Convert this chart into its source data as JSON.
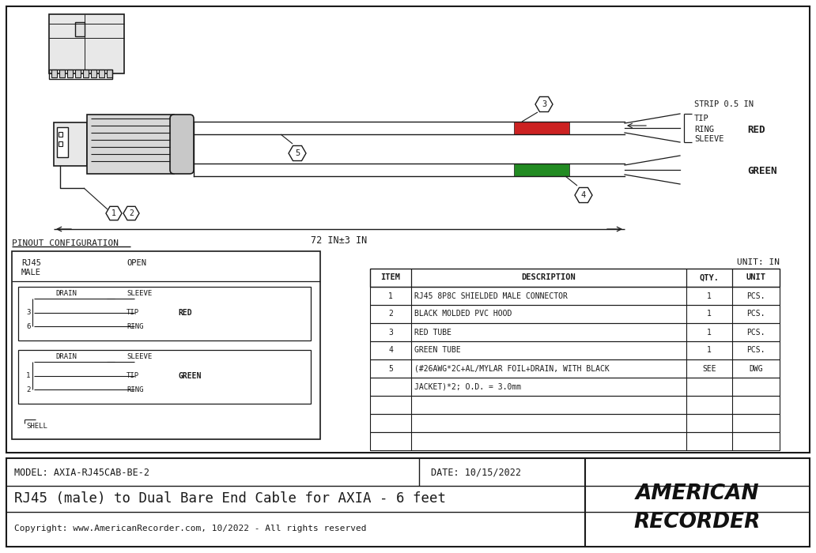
{
  "bg_color": "#ffffff",
  "line_color": "#1a1a1a",
  "title": "RJ45 (male) to Dual Bare End Cable for AXIA - 6 feet",
  "model": "MODEL: AXIA-RJ45CAB-BE-2",
  "date": "DATE: 10/15/2022",
  "copyright": "Copyright: www.AmericanRecorder.com, 10/2022 - All rights reserved",
  "company_line1": "AMERICAN",
  "company_line2": "RECORDER",
  "pinout_title": "PINOUT CONFIGURATION",
  "unit_label": "UNIT: IN",
  "strip_label": "STRIP 0.5 IN",
  "length_label": "72 IN±3 IN",
  "red_label": "RED",
  "green_label": "GREEN",
  "tip_label": "TIP",
  "ring_label": "RING",
  "sleeve_label": "SLEEVE",
  "table_headers": [
    "ITEM",
    "DESCRIPTION",
    "QTY.",
    "UNIT"
  ],
  "table_rows": [
    [
      "1",
      "RJ45 8P8C SHIELDED MALE CONNECTOR",
      "1",
      "PCS."
    ],
    [
      "2",
      "BLACK MOLDED PVC HOOD",
      "1",
      "PCS."
    ],
    [
      "3",
      "RED TUBE",
      "1",
      "PCS."
    ],
    [
      "4",
      "GREEN TUBE",
      "1",
      "PCS."
    ],
    [
      "5",
      "(#26AWG*2C+AL/MYLAR FOIL+DRAIN, WITH BLACK",
      "SEE",
      "DWG"
    ],
    [
      "",
      "JACKET)*2; O.D. = 3.0mm",
      "",
      ""
    ],
    [
      "",
      "",
      "",
      ""
    ],
    [
      "",
      "",
      "",
      ""
    ],
    [
      "",
      "",
      "",
      ""
    ]
  ],
  "red_color": "#cc2222",
  "green_color": "#228B22"
}
